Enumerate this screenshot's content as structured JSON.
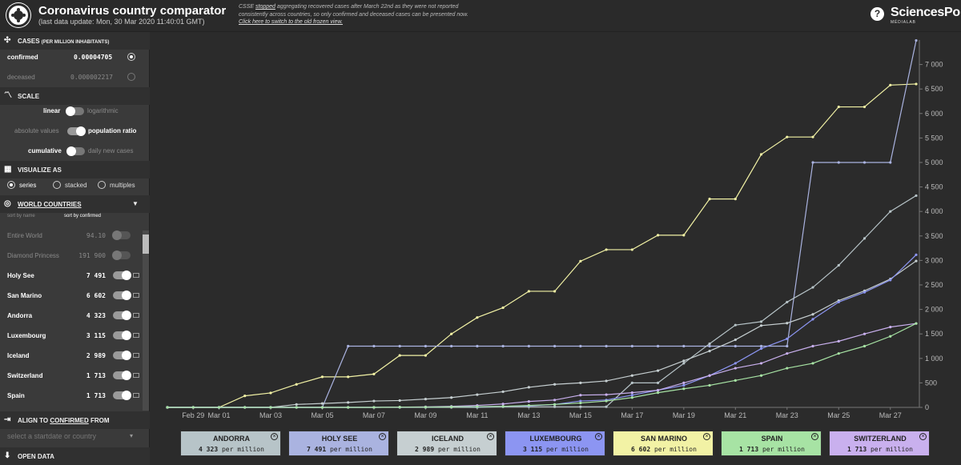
{
  "header": {
    "title": "Coronavirus country comparator",
    "subtitle": "(last data update: Mon, 30 Mar 2020 11:40:01 GMT)",
    "notice_pre": "CSSE ",
    "notice_link": "stopped",
    "notice_mid": " aggregating recovered cases after March 22nd as they were not reported consistently across countries, so only confirmed and deceased cases can be presented now. ",
    "notice_link2": "Click here to switch to the old frozen view.",
    "brand": "SciencesPo",
    "brand_sub": "MÉDIALAB",
    "help": "?"
  },
  "sidebar": {
    "cases": {
      "title": "CASES",
      "title_small": "(PER MILLION INHABITANTS)",
      "confirmed_label": "confirmed",
      "confirmed_value": "0.00004705",
      "deceased_label": "deceased",
      "deceased_value": "0.000002217"
    },
    "scale": {
      "title": "SCALE",
      "linear": "linear",
      "logarithmic": "logarithmic",
      "absolute": "absolute values",
      "population": "population ratio",
      "cumulative": "cumulative",
      "daily": "daily new cases"
    },
    "visualize": {
      "title": "VISUALIZE AS",
      "series": "series",
      "stacked": "stacked",
      "multiples": "multiples"
    },
    "countries": {
      "title": "WORLD COUNTRIES",
      "sort_name": "sort by name",
      "sort_confirmed": "sort by confirmed",
      "items": [
        {
          "name": "Entire World",
          "value": "94.10",
          "enabled": false
        },
        {
          "name": "Diamond Princess",
          "value": "191 900",
          "enabled": false
        },
        {
          "name": "Holy See",
          "value": "7 491",
          "enabled": true
        },
        {
          "name": "San Marino",
          "value": "6 602",
          "enabled": true
        },
        {
          "name": "Andorra",
          "value": "4 323",
          "enabled": true
        },
        {
          "name": "Luxembourg",
          "value": "3 115",
          "enabled": true
        },
        {
          "name": "Iceland",
          "value": "2 989",
          "enabled": true
        },
        {
          "name": "Switzerland",
          "value": "1 713",
          "enabled": true
        },
        {
          "name": "Spain",
          "value": "1 713",
          "enabled": true
        }
      ]
    },
    "align": {
      "title_pre": "ALIGN TO",
      "title_link": "CONFIRMED",
      "title_post": "FROM",
      "placeholder": "select a startdate or country"
    },
    "open_data": "OPEN DATA"
  },
  "legend_cards": [
    {
      "name": "ANDORRA",
      "value": "4 323",
      "unit": "per million",
      "color": "#b7c4c8"
    },
    {
      "name": "HOLY SEE",
      "value": "7 491",
      "unit": "per million",
      "color": "#aab3e0"
    },
    {
      "name": "ICELAND",
      "value": "2 989",
      "unit": "per million",
      "color": "#c6cfd1"
    },
    {
      "name": "LUXEMBOURG",
      "value": "3 115",
      "unit": "per million",
      "color": "#8c95f2"
    },
    {
      "name": "SAN MARINO",
      "value": "6 602",
      "unit": "per million",
      "color": "#f2f2a5"
    },
    {
      "name": "SPAIN",
      "value": "1 713",
      "unit": "per million",
      "color": "#a7e3a4"
    },
    {
      "name": "SWITZERLAND",
      "value": "1 713",
      "unit": "per million",
      "color": "#c9b0ee"
    }
  ],
  "chart_data": {
    "type": "line",
    "x_labels": [
      "Feb 29",
      "Mar 01",
      "Mar 03",
      "Mar 05",
      "Mar 07",
      "Mar 09",
      "Mar 11",
      "Mar 13",
      "Mar 15",
      "Mar 17",
      "Mar 19",
      "Mar 21",
      "Mar 23",
      "Mar 25",
      "Mar 27"
    ],
    "y_ticks": [
      0,
      500,
      1000,
      1500,
      2000,
      2500,
      3000,
      3500,
      4000,
      4500,
      5000,
      5500,
      6000,
      6500,
      7000
    ],
    "ylim": [
      0,
      7500
    ],
    "x_start": "Feb 28",
    "days": 30,
    "series": [
      {
        "name": "San Marino",
        "color": "#f2f2a5",
        "values": [
          0,
          0,
          0,
          235,
          295,
          470,
          623,
          623,
          680,
          1060,
          1060,
          1500,
          1835,
          2035,
          2370,
          2370,
          2985,
          3220,
          3220,
          3515,
          3515,
          4255,
          4255,
          5165,
          5520,
          5520,
          6135,
          6135,
          6580,
          6602
        ]
      },
      {
        "name": "Holy See",
        "color": "#aab3e0",
        "values": [
          0,
          0,
          0,
          0,
          0,
          0,
          0,
          1250,
          1250,
          1250,
          1250,
          1250,
          1250,
          1250,
          1250,
          1250,
          1250,
          1250,
          1250,
          1250,
          1250,
          1250,
          1250,
          1250,
          1250,
          5000,
          5000,
          5000,
          5000,
          7491
        ]
      },
      {
        "name": "Andorra",
        "color": "#b7c4c8",
        "values": [
          0,
          0,
          0,
          0,
          0,
          0,
          0,
          0,
          0,
          0,
          0,
          0,
          0,
          13,
          13,
          13,
          13,
          13,
          500,
          500,
          900,
          1300,
          1680,
          1750,
          2150,
          2450,
          2900,
          3450,
          4000,
          4323
        ]
      },
      {
        "name": "Iceland",
        "color": "#c6cfd1",
        "values": [
          0,
          0,
          0,
          0,
          0,
          60,
          80,
          100,
          130,
          140,
          170,
          200,
          260,
          320,
          410,
          470,
          500,
          540,
          650,
          750,
          950,
          1150,
          1380,
          1670,
          1720,
          1900,
          2180,
          2380,
          2620,
          2989
        ]
      },
      {
        "name": "Luxembourg",
        "color": "#8c95f2",
        "values": [
          0,
          0,
          0,
          0,
          0,
          0,
          0,
          0,
          0,
          5,
          5,
          10,
          10,
          20,
          30,
          60,
          130,
          150,
          250,
          350,
          450,
          650,
          900,
          1200,
          1400,
          1800,
          2150,
          2350,
          2600,
          3115
        ]
      },
      {
        "name": "Switzerland",
        "color": "#c9b0ee",
        "values": [
          0,
          0,
          0,
          0,
          0,
          0,
          0,
          0,
          0,
          5,
          10,
          20,
          40,
          70,
          120,
          150,
          250,
          260,
          300,
          350,
          500,
          650,
          800,
          900,
          1100,
          1250,
          1350,
          1500,
          1640,
          1713
        ]
      },
      {
        "name": "Spain",
        "color": "#a7e3a4",
        "values": [
          0,
          0,
          0,
          0,
          0,
          0,
          0,
          0,
          0,
          5,
          5,
          10,
          15,
          20,
          40,
          60,
          90,
          130,
          200,
          300,
          380,
          450,
          550,
          650,
          800,
          900,
          1100,
          1250,
          1450,
          1713
        ]
      }
    ]
  }
}
